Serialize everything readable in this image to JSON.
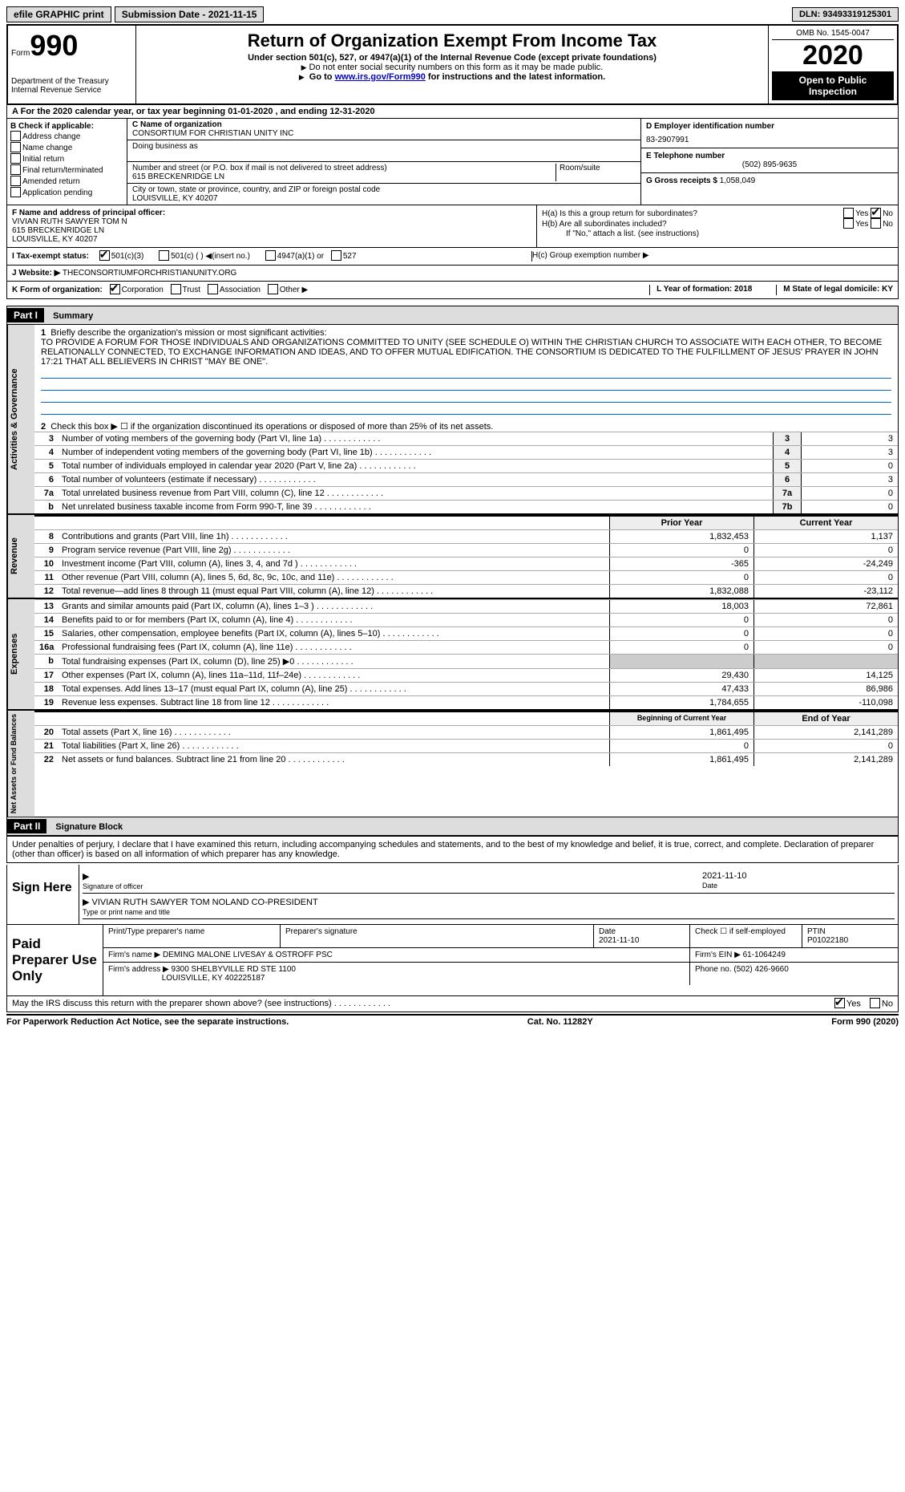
{
  "topbar": {
    "efile": "efile GRAPHIC print",
    "submission": "Submission Date - 2021-11-15",
    "dln": "DLN: 93493319125301"
  },
  "header": {
    "form_label": "Form",
    "form_number": "990",
    "dept1": "Department of the Treasury",
    "dept2": "Internal Revenue Service",
    "title": "Return of Organization Exempt From Income Tax",
    "sub1": "Under section 501(c), 527, or 4947(a)(1) of the Internal Revenue Code (except private foundations)",
    "sub2": "Do not enter social security numbers on this form as it may be made public.",
    "sub3_pre": "Go to ",
    "sub3_link": "www.irs.gov/Form990",
    "sub3_post": " for instructions and the latest information.",
    "omb": "OMB No. 1545-0047",
    "year": "2020",
    "open": "Open to Public Inspection"
  },
  "row_a": "For the 2020 calendar year, or tax year beginning 01-01-2020   , and ending 12-31-2020",
  "col_b": {
    "hdr": "B Check if applicable:",
    "opts": [
      "Address change",
      "Name change",
      "Initial return",
      "Final return/terminated",
      "Amended return",
      "Application pending"
    ]
  },
  "col_c": {
    "c_label": "C Name of organization",
    "org": "CONSORTIUM FOR CHRISTIAN UNITY INC",
    "dba": "Doing business as",
    "street_label": "Number and street (or P.O. box if mail is not delivered to street address)",
    "room_label": "Room/suite",
    "street": "615 BRECKENRIDGE LN",
    "city_label": "City or town, state or province, country, and ZIP or foreign postal code",
    "city": "LOUISVILLE, KY  40207"
  },
  "col_d": {
    "d_label": "D Employer identification number",
    "ein": "83-2907991",
    "e_label": "E Telephone number",
    "phone": "(502) 895-9635",
    "g_label": "G Gross receipts $",
    "gross": "1,058,049"
  },
  "row_f": {
    "f_label": "F  Name and address of principal officer:",
    "name": "VIVIAN RUTH SAWYER TOM N",
    "street": "615 BRECKENRIDGE LN",
    "city": "LOUISVILLE, KY  40207",
    "ha": "H(a)  Is this a group return for subordinates?",
    "hb": "H(b)  Are all subordinates included?",
    "hb_note": "If \"No,\" attach a list. (see instructions)",
    "hc": "H(c)  Group exemption number ▶",
    "yes": "Yes",
    "no": "No"
  },
  "row_i": {
    "label": "I   Tax-exempt status:",
    "opt1": "501(c)(3)",
    "opt2": "501(c) (  ) ◀(insert no.)",
    "opt3": "4947(a)(1) or",
    "opt4": "527"
  },
  "row_j": {
    "label": "J   Website: ▶",
    "val": "THECONSORTIUMFORCHRISTIANUNITY.ORG"
  },
  "row_k": {
    "label": "K Form of organization:",
    "corp": "Corporation",
    "trust": "Trust",
    "assoc": "Association",
    "other": "Other ▶",
    "l": "L Year of formation: 2018",
    "m": "M State of legal domicile: KY"
  },
  "part1": {
    "hdr": "Part I",
    "title": "Summary",
    "l1_label": "Briefly describe the organization's mission or most significant activities:",
    "l1_text": "TO PROVIDE A FORUM FOR THOSE INDIVIDUALS AND ORGANIZATIONS COMMITTED TO UNITY (SEE SCHEDULE O) WITHIN THE CHRISTIAN CHURCH TO ASSOCIATE WITH EACH OTHER, TO BECOME RELATIONALLY CONNECTED, TO EXCHANGE INFORMATION AND IDEAS, AND TO OFFER MUTUAL EDIFICATION. THE CONSORTIUM IS DEDICATED TO THE FULFILLMENT OF JESUS' PRAYER IN JOHN 17:21 THAT ALL BELIEVERS IN CHRIST \"MAY BE ONE\".",
    "l2": "Check this box ▶ ☐  if the organization discontinued its operations or disposed of more than 25% of its net assets.",
    "l3t": "Number of voting members of the governing body (Part VI, line 1a)",
    "l3v": "3",
    "l4t": "Number of independent voting members of the governing body (Part VI, line 1b)",
    "l4v": "3",
    "l5t": "Total number of individuals employed in calendar year 2020 (Part V, line 2a)",
    "l5v": "0",
    "l6t": "Total number of volunteers (estimate if necessary)",
    "l6v": "3",
    "l7at": "Total unrelated business revenue from Part VIII, column (C), line 12",
    "l7av": "0",
    "l7bt": "Net unrelated business taxable income from Form 990-T, line 39",
    "l7bv": "0",
    "prior": "Prior Year",
    "current": "Current Year",
    "rev": [
      {
        "n": "8",
        "t": "Contributions and grants (Part VIII, line 1h)",
        "p": "1,832,453",
        "c": "1,137"
      },
      {
        "n": "9",
        "t": "Program service revenue (Part VIII, line 2g)",
        "p": "0",
        "c": "0"
      },
      {
        "n": "10",
        "t": "Investment income (Part VIII, column (A), lines 3, 4, and 7d )",
        "p": "-365",
        "c": "-24,249"
      },
      {
        "n": "11",
        "t": "Other revenue (Part VIII, column (A), lines 5, 6d, 8c, 9c, 10c, and 11e)",
        "p": "0",
        "c": "0"
      },
      {
        "n": "12",
        "t": "Total revenue—add lines 8 through 11 (must equal Part VIII, column (A), line 12)",
        "p": "1,832,088",
        "c": "-23,112"
      }
    ],
    "exp": [
      {
        "n": "13",
        "t": "Grants and similar amounts paid (Part IX, column (A), lines 1–3 )",
        "p": "18,003",
        "c": "72,861"
      },
      {
        "n": "14",
        "t": "Benefits paid to or for members (Part IX, column (A), line 4)",
        "p": "0",
        "c": "0"
      },
      {
        "n": "15",
        "t": "Salaries, other compensation, employee benefits (Part IX, column (A), lines 5–10)",
        "p": "0",
        "c": "0"
      },
      {
        "n": "16a",
        "t": "Professional fundraising fees (Part IX, column (A), line 11e)",
        "p": "0",
        "c": "0"
      },
      {
        "n": "b",
        "t": "Total fundraising expenses (Part IX, column (D), line 25) ▶0",
        "p": "",
        "c": "",
        "shade": true
      },
      {
        "n": "17",
        "t": "Other expenses (Part IX, column (A), lines 11a–11d, 11f–24e)",
        "p": "29,430",
        "c": "14,125"
      },
      {
        "n": "18",
        "t": "Total expenses. Add lines 13–17 (must equal Part IX, column (A), line 25)",
        "p": "47,433",
        "c": "86,986"
      },
      {
        "n": "19",
        "t": "Revenue less expenses. Subtract line 18 from line 12",
        "p": "1,784,655",
        "c": "-110,098"
      }
    ],
    "begin": "Beginning of Current Year",
    "end": "End of Year",
    "net": [
      {
        "n": "20",
        "t": "Total assets (Part X, line 16)",
        "p": "1,861,495",
        "c": "2,141,289"
      },
      {
        "n": "21",
        "t": "Total liabilities (Part X, line 26)",
        "p": "0",
        "c": "0"
      },
      {
        "n": "22",
        "t": "Net assets or fund balances. Subtract line 21 from line 20",
        "p": "1,861,495",
        "c": "2,141,289"
      }
    ],
    "vtab_ag": "Activities & Governance",
    "vtab_rev": "Revenue",
    "vtab_exp": "Expenses",
    "vtab_net": "Net Assets or Fund Balances"
  },
  "part2": {
    "hdr": "Part II",
    "title": "Signature Block",
    "declare": "Under penalties of perjury, I declare that I have examined this return, including accompanying schedules and statements, and to the best of my knowledge and belief, it is true, correct, and complete. Declaration of preparer (other than officer) is based on all information of which preparer has any knowledge.",
    "sign_here": "Sign Here",
    "sig_officer": "Signature of officer",
    "sig_date": "2021-11-10",
    "date_label": "Date",
    "officer_name": "VIVIAN RUTH SAWYER TOM NOLAND  CO-PRESIDENT",
    "type_label": "Type or print name and title",
    "paid": "Paid Preparer Use Only",
    "pp_name_label": "Print/Type preparer's name",
    "pp_sig_label": "Preparer's signature",
    "pp_date": "2021-11-10",
    "pp_check": "Check ☐ if self-employed",
    "ptin_label": "PTIN",
    "ptin": "P01022180",
    "firm_name_label": "Firm's name    ▶",
    "firm_name": "DEMING MALONE LIVESAY & OSTROFF PSC",
    "firm_ein_label": "Firm's EIN ▶",
    "firm_ein": "61-1064249",
    "firm_addr_label": "Firm's address ▶",
    "firm_addr1": "9300 SHELBYVILLE RD STE 1100",
    "firm_addr2": "LOUISVILLE, KY  402225187",
    "firm_phone_label": "Phone no.",
    "firm_phone": "(502) 426-9660",
    "discuss": "May the IRS discuss this return with the preparer shown above? (see instructions)"
  },
  "footer": {
    "left": "For Paperwork Reduction Act Notice, see the separate instructions.",
    "center": "Cat. No. 11282Y",
    "right": "Form 990 (2020)"
  }
}
